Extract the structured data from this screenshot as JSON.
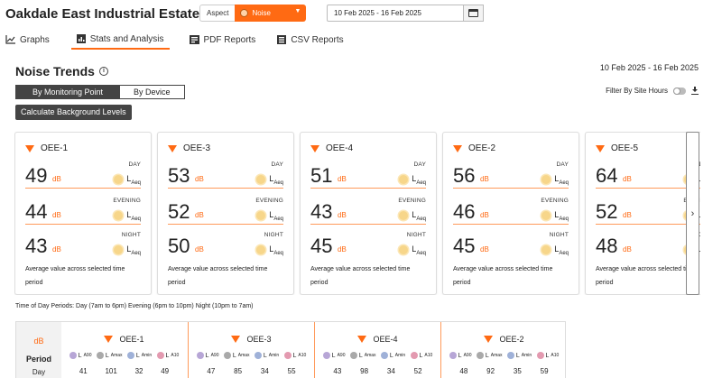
{
  "header": {
    "site_name": "Oakdale East Industrial Estate",
    "aspect_label": "Aspect",
    "aspect_value": "Noise",
    "date_range": "10 Feb 2025 - 16 Feb 2025",
    "accent_color": "#ff6a13"
  },
  "tabs": [
    {
      "label": "Graphs",
      "icon": "line-chart-icon",
      "active": false
    },
    {
      "label": "Stats and Analysis",
      "icon": "bar-chart-icon",
      "active": true
    },
    {
      "label": "PDF Reports",
      "icon": "pdf-icon",
      "active": false
    },
    {
      "label": "CSV Reports",
      "icon": "csv-icon",
      "active": false
    }
  ],
  "page": {
    "title": "Noise Trends",
    "range": "10 Feb 2025 - 16 Feb 2025",
    "seg_monitoring": "By Monitoring Point",
    "seg_device": "By Device",
    "filter_label": "Filter By Site Hours",
    "calc_button": "Calculate Background Levels",
    "tod_note": "Time of Day Periods: Day (7am to 6pm) Evening (6pm to 10pm) Night (10pm to 7am)"
  },
  "cards_common": {
    "unit": "dB",
    "metric_main": "L",
    "metric_sub": "Aeq",
    "day_label": "DAY",
    "evening_label": "EVENING",
    "night_label": "NIGHT",
    "avg_note": "Average value across selected time period"
  },
  "cards": [
    {
      "name": "OEE-1",
      "day": "49",
      "evening": "44",
      "night": "43"
    },
    {
      "name": "OEE-3",
      "day": "53",
      "evening": "52",
      "night": "50"
    },
    {
      "name": "OEE-4",
      "day": "51",
      "evening": "43",
      "night": "45"
    },
    {
      "name": "OEE-2",
      "day": "56",
      "evening": "46",
      "night": "45"
    },
    {
      "name": "OEE-5",
      "day": "64",
      "evening": "52",
      "night": "48"
    }
  ],
  "table": {
    "unit": "dB",
    "period_label": "Period",
    "day_label": "Day",
    "metric_main": "L",
    "metrics": [
      "A90",
      "Amax",
      "Amin",
      "A10"
    ],
    "columns": [
      {
        "name": "OEE-1",
        "day": [
          "41",
          "101",
          "32",
          "49"
        ]
      },
      {
        "name": "OEE-3",
        "day": [
          "47",
          "85",
          "34",
          "55"
        ]
      },
      {
        "name": "OEE-4",
        "day": [
          "43",
          "98",
          "34",
          "52"
        ]
      },
      {
        "name": "OEE-2",
        "day": [
          "48",
          "92",
          "35",
          "59"
        ]
      }
    ]
  }
}
